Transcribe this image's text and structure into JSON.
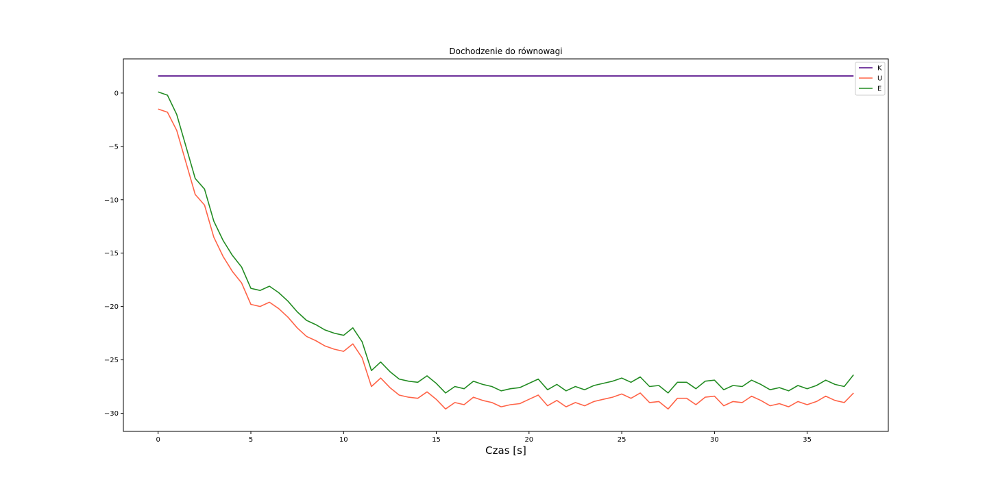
{
  "chart_data": {
    "type": "line",
    "title": "Dochodzenie do równowagi",
    "xlabel": "Czas [s]",
    "ylabel": "",
    "xlim": [
      -1.875,
      39.375
    ],
    "ylim": [
      -31.7,
      3.2
    ],
    "xticks": [
      0,
      5,
      10,
      15,
      20,
      25,
      30,
      35
    ],
    "xtick_labels": [
      "0",
      "5",
      "10",
      "15",
      "20",
      "25",
      "30",
      "35"
    ],
    "yticks": [
      0,
      -5,
      -10,
      -15,
      -20,
      -25,
      -30
    ],
    "ytick_labels": [
      "0",
      "−5",
      "−10",
      "−15",
      "−20",
      "−25",
      "−30"
    ],
    "legend_position": "top-right",
    "grid": false,
    "x": [
      0,
      0.5,
      1,
      1.5,
      2,
      2.5,
      3,
      3.5,
      4,
      4.5,
      5,
      5.5,
      6,
      6.5,
      7,
      7.5,
      8,
      8.5,
      9,
      9.5,
      10,
      10.5,
      11,
      11.5,
      12,
      12.5,
      13,
      13.5,
      14,
      14.5,
      15,
      15.5,
      16,
      16.5,
      17,
      17.5,
      18,
      18.5,
      19,
      19.5,
      20,
      20.5,
      21,
      21.5,
      22,
      22.5,
      23,
      23.5,
      24,
      24.5,
      25,
      25.5,
      26,
      26.5,
      27,
      27.5,
      28,
      28.5,
      29,
      29.5,
      30,
      30.5,
      31,
      31.5,
      32,
      32.5,
      33,
      33.5,
      34,
      34.5,
      35,
      35.5,
      36,
      36.5,
      37,
      37.5
    ],
    "series": [
      {
        "name": "K",
        "color": "#4b0082",
        "values": [
          1.6,
          1.6,
          1.6,
          1.6,
          1.6,
          1.6,
          1.6,
          1.6,
          1.6,
          1.6,
          1.6,
          1.6,
          1.6,
          1.6,
          1.6,
          1.6,
          1.6,
          1.6,
          1.6,
          1.6,
          1.6,
          1.6,
          1.6,
          1.6,
          1.6,
          1.6,
          1.6,
          1.6,
          1.6,
          1.6,
          1.6,
          1.6,
          1.6,
          1.6,
          1.6,
          1.6,
          1.6,
          1.6,
          1.6,
          1.6,
          1.6,
          1.6,
          1.6,
          1.6,
          1.6,
          1.6,
          1.6,
          1.6,
          1.6,
          1.6,
          1.6,
          1.6,
          1.6,
          1.6,
          1.6,
          1.6,
          1.6,
          1.6,
          1.6,
          1.6,
          1.6,
          1.6,
          1.6,
          1.6,
          1.6,
          1.6,
          1.6,
          1.6,
          1.6,
          1.6,
          1.6,
          1.6,
          1.6,
          1.6,
          1.6,
          1.6
        ]
      },
      {
        "name": "U",
        "color": "#ff6347",
        "values": [
          -1.5,
          -1.8,
          -3.5,
          -6.5,
          -9.5,
          -10.5,
          -13.5,
          -15.3,
          -16.7,
          -17.8,
          -19.8,
          -20.0,
          -19.6,
          -20.2,
          -21.0,
          -22.0,
          -22.8,
          -23.2,
          -23.7,
          -24.0,
          -24.2,
          -23.5,
          -24.8,
          -27.5,
          -26.7,
          -27.6,
          -28.3,
          -28.5,
          -28.6,
          -28.0,
          -28.7,
          -29.6,
          -29.0,
          -29.2,
          -28.5,
          -28.8,
          -29.0,
          -29.4,
          -29.2,
          -29.1,
          -28.7,
          -28.3,
          -29.3,
          -28.8,
          -29.4,
          -29.0,
          -29.3,
          -28.9,
          -28.7,
          -28.5,
          -28.2,
          -28.6,
          -28.1,
          -29.0,
          -28.9,
          -29.6,
          -28.6,
          -28.6,
          -29.2,
          -28.5,
          -28.4,
          -29.3,
          -28.9,
          -29.0,
          -28.4,
          -28.8,
          -29.3,
          -29.1,
          -29.4,
          -28.9,
          -29.2,
          -28.9,
          -28.4,
          -28.8,
          -29.0,
          -28.1
        ]
      },
      {
        "name": "E",
        "color": "#228b22",
        "values": [
          0.1,
          -0.2,
          -2.0,
          -5.0,
          -8.0,
          -9.0,
          -12.0,
          -13.8,
          -15.2,
          -16.3,
          -18.3,
          -18.5,
          -18.1,
          -18.7,
          -19.5,
          -20.5,
          -21.3,
          -21.7,
          -22.2,
          -22.5,
          -22.7,
          -22.0,
          -23.3,
          -26.0,
          -25.2,
          -26.1,
          -26.8,
          -27.0,
          -27.1,
          -26.5,
          -27.2,
          -28.1,
          -27.5,
          -27.7,
          -27.0,
          -27.3,
          -27.5,
          -27.9,
          -27.7,
          -27.6,
          -27.2,
          -26.8,
          -27.8,
          -27.3,
          -27.9,
          -27.5,
          -27.8,
          -27.4,
          -27.2,
          -27.0,
          -26.7,
          -27.1,
          -26.6,
          -27.5,
          -27.4,
          -28.1,
          -27.1,
          -27.1,
          -27.7,
          -27.0,
          -26.9,
          -27.8,
          -27.4,
          -27.5,
          -26.9,
          -27.3,
          -27.8,
          -27.6,
          -27.9,
          -27.4,
          -27.7,
          -27.4,
          -26.9,
          -27.3,
          -27.5,
          -26.4
        ]
      }
    ]
  }
}
